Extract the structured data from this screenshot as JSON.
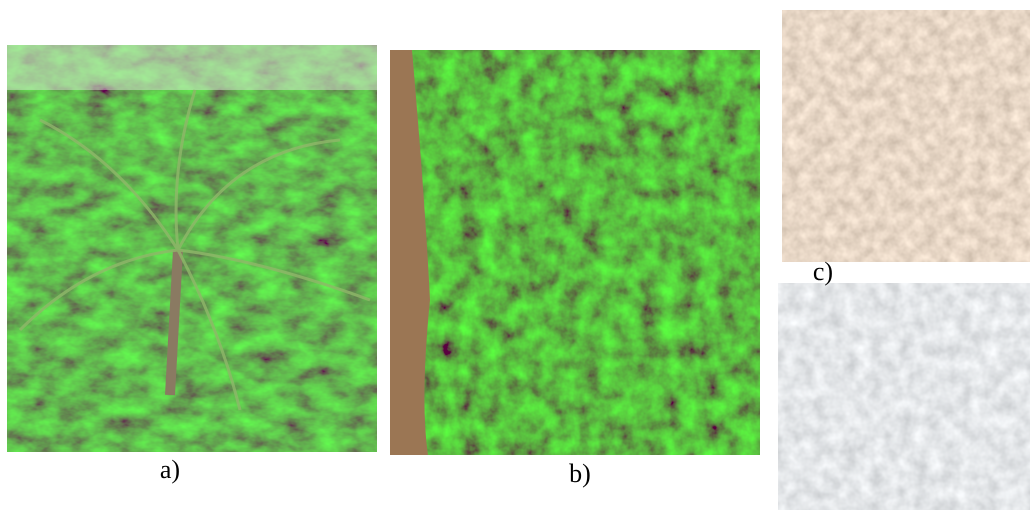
{
  "labels": {
    "a": "a)",
    "b": "b)",
    "c": "c)"
  }
}
